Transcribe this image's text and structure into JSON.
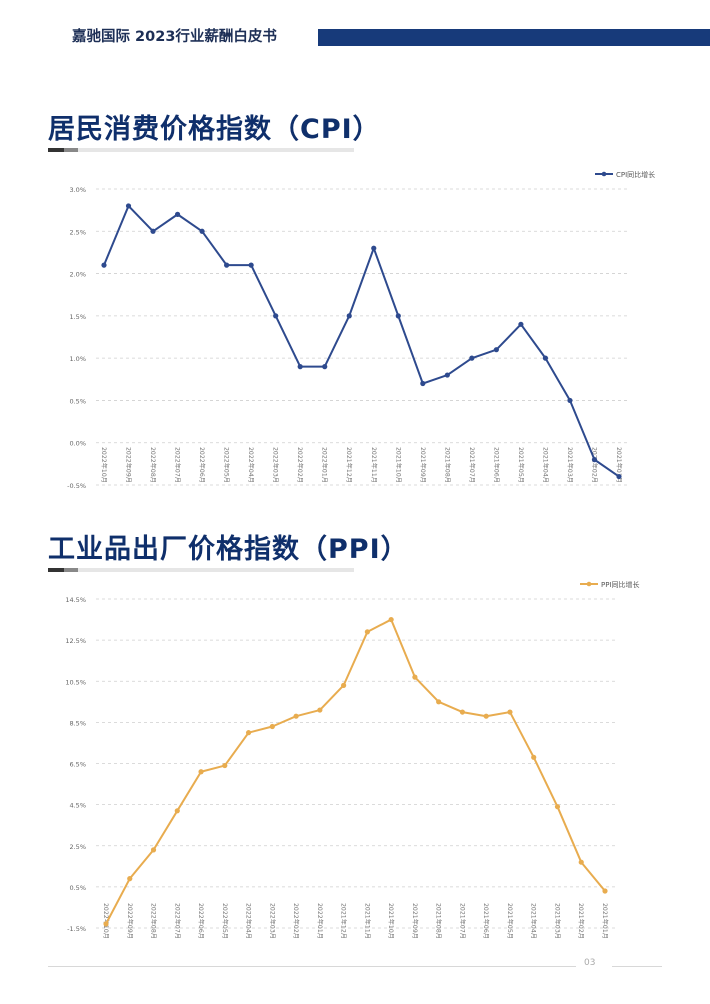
{
  "header": {
    "title": "嘉驰国际  2023行业薪酬白皮书"
  },
  "sections": [
    {
      "title": "居民消费价格指数（CPI）"
    },
    {
      "title": "工业品出厂价格指数（PPI）"
    }
  ],
  "footer": {
    "page": "03"
  },
  "colors": {
    "cpi": "#2e4a8e",
    "ppi": "#e8ac4f",
    "header_bar": "#173a7a"
  },
  "chart_data": [
    {
      "type": "line",
      "legend": "CPI同比增长",
      "legend_position": "top-right",
      "grid": true,
      "categories": [
        "2022年10月",
        "2022年09月",
        "2022年08月",
        "2022年07月",
        "2022年06月",
        "2022年05月",
        "2022年04月",
        "2022年03月",
        "2022年02月",
        "2022年01月",
        "2021年12月",
        "2021年11月",
        "2021年10月",
        "2021年09月",
        "2021年08月",
        "2021年07月",
        "2021年06月",
        "2021年05月",
        "2021年04月",
        "2021年03月",
        "2021年02月",
        "2021年01月"
      ],
      "yticks": [
        "3.0%",
        "2.5%",
        "2.0%",
        "1.5%",
        "1.0%",
        "0.5%",
        "0.0%",
        "-0.5%"
      ],
      "ylim": [
        -0.5,
        3.0
      ],
      "series": [
        {
          "name": "CPI同比增长",
          "values": [
            2.1,
            2.8,
            2.5,
            2.7,
            2.5,
            2.1,
            2.1,
            1.5,
            0.9,
            0.9,
            1.5,
            2.3,
            1.5,
            0.7,
            0.8,
            1.0,
            1.1,
            1.4,
            1.0,
            0.5,
            -0.2,
            -0.4
          ]
        }
      ]
    },
    {
      "type": "line",
      "legend": "PPI同比增长",
      "legend_position": "top-right",
      "grid": true,
      "categories": [
        "2022年10月",
        "2022年09月",
        "2022年08月",
        "2022年07月",
        "2022年06月",
        "2022年05月",
        "2022年04月",
        "2022年03月",
        "2022年02月",
        "2022年01月",
        "2021年12月",
        "2021年11月",
        "2021年10月",
        "2021年09月",
        "2021年08月",
        "2021年07月",
        "2021年06月",
        "2021年05月",
        "2021年04月",
        "2021年03月",
        "2021年02月",
        "2021年01月"
      ],
      "yticks": [
        "14.5%",
        "12.5%",
        "10.5%",
        "8.5%",
        "6.5%",
        "4.5%",
        "2.5%",
        "0.5%",
        "-1.5%"
      ],
      "ylim": [
        -1.5,
        14.5
      ],
      "series": [
        {
          "name": "PPI同比增长",
          "values": [
            -1.3,
            0.9,
            2.3,
            4.2,
            6.1,
            6.4,
            8.0,
            8.3,
            8.8,
            9.1,
            10.3,
            12.9,
            13.5,
            10.7,
            9.5,
            9.0,
            8.8,
            9.0,
            6.8,
            4.4,
            1.7,
            0.3
          ]
        }
      ]
    }
  ]
}
